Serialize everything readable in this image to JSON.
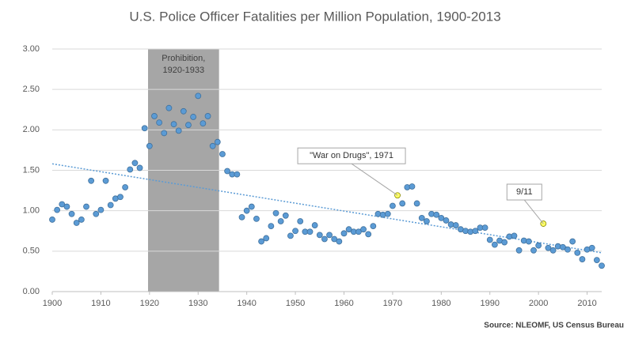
{
  "chart_data": {
    "type": "scatter",
    "title": "U.S. Police Officer Fatalities per Million Population, 1900-2013",
    "source": "Source: NLEOMF, US Census Bureau",
    "x": [
      1900,
      1901,
      1902,
      1903,
      1904,
      1905,
      1906,
      1907,
      1908,
      1909,
      1910,
      1911,
      1912,
      1913,
      1914,
      1915,
      1916,
      1917,
      1918,
      1919,
      1920,
      1921,
      1922,
      1923,
      1924,
      1925,
      1926,
      1927,
      1928,
      1929,
      1930,
      1931,
      1932,
      1933,
      1934,
      1935,
      1936,
      1937,
      1938,
      1939,
      1940,
      1941,
      1942,
      1943,
      1944,
      1945,
      1946,
      1947,
      1948,
      1949,
      1950,
      1951,
      1952,
      1953,
      1954,
      1955,
      1956,
      1957,
      1958,
      1959,
      1960,
      1961,
      1962,
      1963,
      1964,
      1965,
      1966,
      1967,
      1968,
      1969,
      1970,
      1971,
      1972,
      1973,
      1974,
      1975,
      1976,
      1977,
      1978,
      1979,
      1980,
      1981,
      1982,
      1983,
      1984,
      1985,
      1986,
      1987,
      1988,
      1989,
      1990,
      1991,
      1992,
      1993,
      1994,
      1995,
      1996,
      1997,
      1998,
      1999,
      2000,
      2001,
      2002,
      2003,
      2004,
      2005,
      2006,
      2007,
      2008,
      2009,
      2010,
      2011,
      2012,
      2013
    ],
    "values": [
      0.89,
      1.01,
      1.08,
      1.05,
      0.96,
      0.85,
      0.89,
      1.05,
      1.37,
      0.96,
      1.01,
      1.37,
      1.07,
      1.15,
      1.17,
      1.29,
      1.51,
      1.59,
      1.53,
      2.02,
      1.8,
      2.17,
      2.09,
      1.96,
      2.27,
      2.07,
      1.99,
      2.23,
      2.06,
      2.16,
      2.42,
      2.08,
      2.17,
      1.8,
      1.85,
      1.7,
      1.49,
      1.45,
      1.45,
      0.92,
      1.0,
      1.05,
      0.9,
      0.62,
      0.66,
      0.81,
      0.97,
      0.87,
      0.94,
      0.69,
      0.75,
      0.87,
      0.74,
      0.74,
      0.82,
      0.7,
      0.65,
      0.7,
      0.65,
      0.62,
      0.72,
      0.77,
      0.74,
      0.74,
      0.77,
      0.71,
      0.81,
      0.96,
      0.95,
      0.96,
      1.06,
      1.19,
      1.09,
      1.29,
      1.3,
      1.09,
      0.91,
      0.87,
      0.96,
      0.95,
      0.91,
      0.88,
      0.83,
      0.82,
      0.77,
      0.75,
      0.74,
      0.75,
      0.79,
      0.79,
      0.64,
      0.58,
      0.63,
      0.61,
      0.68,
      0.69,
      0.51,
      0.63,
      0.62,
      0.51,
      0.57,
      0.84,
      0.54,
      0.51,
      0.56,
      0.55,
      0.52,
      0.62,
      0.48,
      0.4,
      0.52,
      0.54,
      0.39,
      0.32
    ],
    "color": "#5b9bd5",
    "trendline": {
      "x": [
        1900,
        2013
      ],
      "values": [
        1.58,
        0.48
      ],
      "color": "#5b9bd5"
    },
    "shade": {
      "x": [
        1919.7,
        1934.3
      ],
      "label": [
        "Prohibition,",
        "1920-1933"
      ],
      "color": "#a6a6a6"
    },
    "annotations": [
      {
        "x": 1971,
        "label": "\"War on Drugs\", 1971",
        "color": "#ffff66"
      },
      {
        "x": 2001,
        "label": "9/11",
        "color": "#ffff66"
      }
    ],
    "xlim": [
      1900,
      2013
    ],
    "xticks": [
      1900,
      1910,
      1920,
      1930,
      1940,
      1950,
      1960,
      1970,
      1980,
      1990,
      2000,
      2010
    ],
    "ylim": [
      0,
      3
    ],
    "yticks": [
      {
        "value": 0,
        "label": "0.00"
      },
      {
        "value": 0.5,
        "label": "0.50"
      },
      {
        "value": 1,
        "label": "1.00"
      },
      {
        "value": 1.5,
        "label": "1.50"
      },
      {
        "value": 2,
        "label": "2.00"
      },
      {
        "value": 2.5,
        "label": "2.50"
      },
      {
        "value": 3,
        "label": "3.00"
      }
    ],
    "grid": true
  }
}
